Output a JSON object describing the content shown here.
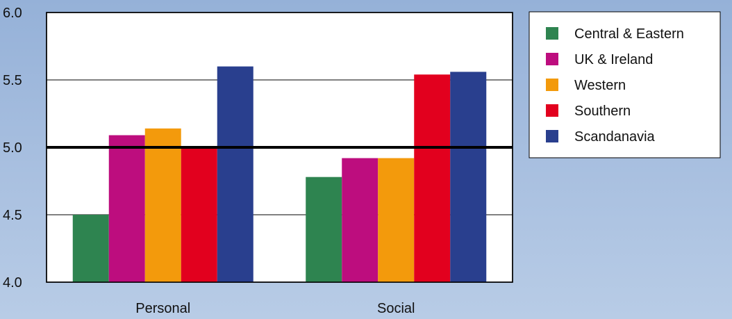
{
  "chart_data": {
    "type": "bar",
    "title": "",
    "xlabel": "",
    "ylabel": "",
    "categories": [
      "Personal",
      "Social"
    ],
    "ylim": [
      4.0,
      6.0
    ],
    "yticks": [
      "4.0",
      "4.5",
      "5.0",
      "5.5",
      "6.0"
    ],
    "reference_line": 5.0,
    "grid": true,
    "legend_position": "right",
    "series": [
      {
        "name": "Central & Eastern",
        "color": "#2e8450",
        "values": [
          4.5,
          4.78
        ]
      },
      {
        "name": "UK & Ireland",
        "color": "#bd0d7e",
        "values": [
          5.09,
          4.92
        ]
      },
      {
        "name": "Western",
        "color": "#f39a0c",
        "values": [
          5.14,
          4.92
        ]
      },
      {
        "name": "Southern",
        "color": "#e2001e",
        "values": [
          5.01,
          5.54
        ]
      },
      {
        "name": "Scandanavia",
        "color": "#293f8e",
        "values": [
          5.6,
          5.56
        ]
      }
    ]
  }
}
